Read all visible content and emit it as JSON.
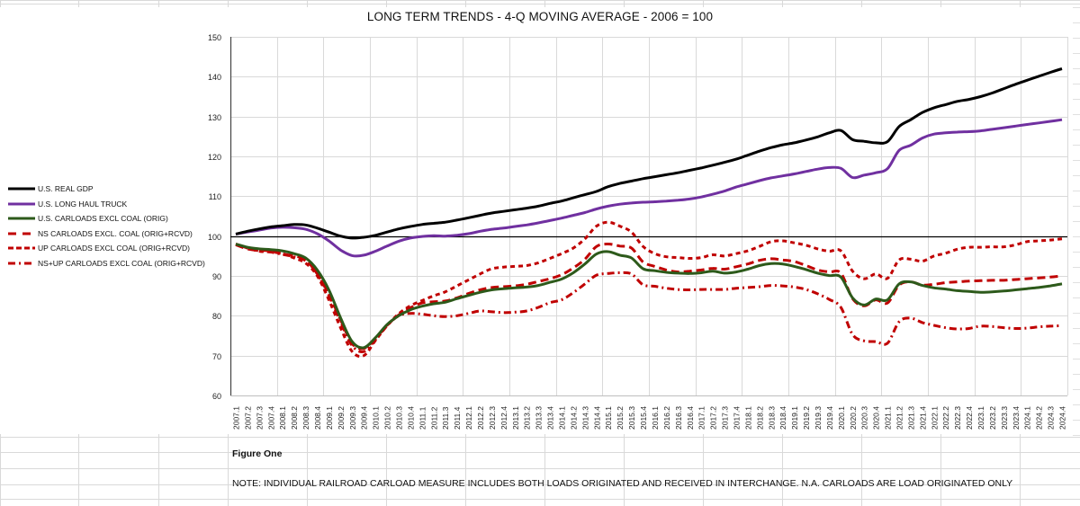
{
  "figure_label": "Figure One",
  "note": "NOTE: INDIVIDUAL RAILROAD CARLOAD MEASURE INCLUDES BOTH LOADS ORIGINATED AND RECEIVED IN INTERCHANGE. N.A. CARLOADS ARE LOAD ORIGINATED ONLY",
  "chart_data": {
    "type": "line",
    "title": "LONG TERM TRENDS - 4-Q MOVING AVERAGE - 2006 = 100",
    "xlabel": "",
    "ylabel": "",
    "ylim": [
      60,
      150
    ],
    "yticks": [
      60,
      70,
      80,
      90,
      100,
      110,
      120,
      130,
      140,
      150
    ],
    "reference_line": 100,
    "grid": true,
    "legend_position": "left",
    "x": [
      "2007.1",
      "2007.2",
      "2007.3",
      "2007.4",
      "2008.1",
      "2008.2",
      "2008.3",
      "2008.4",
      "2009.1",
      "2009.2",
      "2009.3",
      "2009.4",
      "2010.1",
      "2010.2",
      "2010.3",
      "2010.4",
      "2011.1",
      "2011.2",
      "2011.3",
      "2011.4",
      "2012.1",
      "2012.2",
      "2012.3",
      "2012.4",
      "2013.1",
      "2013.2",
      "2013.3",
      "2013.4",
      "2014.1",
      "2014.2",
      "2014.3",
      "2014.4",
      "2015.1",
      "2015.2",
      "2015.3",
      "2015.4",
      "2016.1",
      "2016.2",
      "2016.3",
      "2016.4",
      "2017.1",
      "2017.2",
      "2017.3",
      "2017.4",
      "2018.1",
      "2018.2",
      "2018.3",
      "2018.4",
      "2019.1",
      "2019.2",
      "2019.3",
      "2019.4",
      "2020.1",
      "2020.2",
      "2020.3",
      "2020.4",
      "2021.1",
      "2021.2",
      "2021.3",
      "2021.4",
      "2022.1",
      "2022.2",
      "2022.3",
      "2022.4",
      "2023.1",
      "2023.2",
      "2023.3",
      "2023.4",
      "2024.1",
      "2024.2",
      "2024.3",
      "2024.4"
    ],
    "series": [
      {
        "name": "U.S. REAL GDP",
        "color": "#000000",
        "style": "solid",
        "values": [
          100.5,
          101.2,
          101.8,
          102.3,
          102.6,
          102.9,
          102.8,
          102.0,
          101.0,
          100.0,
          99.5,
          99.7,
          100.2,
          101.0,
          101.8,
          102.4,
          102.9,
          103.2,
          103.5,
          104.0,
          104.6,
          105.2,
          105.8,
          106.2,
          106.6,
          107.0,
          107.5,
          108.2,
          108.8,
          109.6,
          110.4,
          111.2,
          112.4,
          113.2,
          113.8,
          114.4,
          114.9,
          115.4,
          115.9,
          116.5,
          117.1,
          117.8,
          118.5,
          119.3,
          120.3,
          121.3,
          122.2,
          122.9,
          123.4,
          124.1,
          124.9,
          125.9,
          126.5,
          124.2,
          123.8,
          123.4,
          123.7,
          127.5,
          129.2,
          131.0,
          132.2,
          133.0,
          133.8,
          134.3,
          135.0,
          135.9,
          137.0,
          138.1,
          139.1,
          140.1,
          141.1,
          142.0
        ]
      },
      {
        "name": "U.S. LONG HAUL TRUCK",
        "color": "#7030a0",
        "style": "solid",
        "values": [
          100.5,
          101.0,
          101.5,
          102.0,
          102.2,
          102.1,
          101.7,
          100.6,
          98.8,
          96.5,
          95.1,
          95.2,
          96.2,
          97.5,
          98.7,
          99.5,
          99.9,
          100.1,
          100.0,
          100.2,
          100.6,
          101.2,
          101.7,
          102.0,
          102.4,
          102.8,
          103.3,
          103.9,
          104.5,
          105.2,
          105.9,
          106.8,
          107.5,
          108.0,
          108.3,
          108.5,
          108.6,
          108.8,
          109.0,
          109.3,
          109.8,
          110.5,
          111.3,
          112.3,
          113.1,
          113.9,
          114.6,
          115.1,
          115.6,
          116.2,
          116.8,
          117.2,
          117.0,
          114.7,
          115.3,
          115.9,
          116.9,
          121.5,
          122.8,
          124.6,
          125.6,
          125.9,
          126.1,
          126.2,
          126.4,
          126.8,
          127.2,
          127.6,
          128.0,
          128.4,
          128.8,
          129.2
        ]
      },
      {
        "name": "U.S. CARLOADS EXCL COAL (ORIG)",
        "color": "#2d5a1b",
        "style": "solid",
        "values": [
          98.0,
          97.2,
          96.8,
          96.6,
          96.3,
          95.6,
          94.5,
          91.5,
          86.5,
          79.5,
          73.5,
          72.0,
          74.5,
          77.8,
          80.0,
          81.5,
          82.4,
          83.0,
          83.4,
          84.3,
          85.1,
          85.9,
          86.5,
          86.8,
          87.0,
          87.2,
          87.6,
          88.4,
          89.2,
          90.8,
          93.0,
          95.5,
          96.1,
          95.2,
          94.5,
          91.8,
          91.3,
          90.9,
          90.7,
          90.6,
          90.8,
          91.2,
          90.7,
          91.0,
          91.7,
          92.6,
          93.1,
          93.0,
          92.4,
          91.6,
          90.7,
          90.1,
          89.7,
          84.5,
          82.7,
          84.2,
          84.0,
          88.0,
          88.5,
          87.6,
          87.0,
          86.7,
          86.3,
          86.1,
          85.9,
          86.0,
          86.2,
          86.5,
          86.8,
          87.1,
          87.5,
          88.0
        ]
      },
      {
        "name": "NS CARLOADS EXCL. COAL (ORIG+RCVD)",
        "color": "#c00000",
        "style": "long-dash",
        "values": [
          97.8,
          96.8,
          96.4,
          96.3,
          95.5,
          95.0,
          94.0,
          90.5,
          85.5,
          79.0,
          73.0,
          71.8,
          74.3,
          77.6,
          80.2,
          82.0,
          83.2,
          83.5,
          83.7,
          84.5,
          85.6,
          86.5,
          87.1,
          87.3,
          87.5,
          87.9,
          88.6,
          89.3,
          90.3,
          92.0,
          94.2,
          97.4,
          98.0,
          97.5,
          97.0,
          93.5,
          92.4,
          91.5,
          91.0,
          91.2,
          91.5,
          91.9,
          91.7,
          92.3,
          93.0,
          93.9,
          94.3,
          94.0,
          93.6,
          92.6,
          91.5,
          91.0,
          90.7,
          84.3,
          82.5,
          84.0,
          83.2,
          87.7,
          88.5,
          87.7,
          87.9,
          88.3,
          88.5,
          88.7,
          88.8,
          88.9,
          88.9,
          89.1,
          89.3,
          89.5,
          89.7,
          90.0
        ]
      },
      {
        "name": "UP CARLOADS EXCL COAL (ORIG+RCVD)",
        "color": "#c00000",
        "style": "short-dash",
        "values": [
          98.0,
          97.0,
          96.2,
          96.0,
          95.6,
          94.5,
          93.2,
          90.0,
          84.0,
          77.0,
          71.0,
          70.0,
          73.8,
          77.5,
          80.5,
          82.5,
          83.8,
          85.0,
          86.0,
          87.5,
          89.0,
          90.5,
          91.8,
          92.2,
          92.4,
          92.6,
          93.3,
          94.4,
          95.6,
          97.0,
          99.3,
          102.5,
          103.5,
          102.5,
          101.0,
          97.4,
          95.6,
          94.8,
          94.6,
          94.4,
          94.6,
          95.3,
          95.0,
          95.6,
          96.3,
          97.4,
          98.6,
          98.8,
          98.3,
          97.7,
          96.8,
          96.2,
          96.3,
          91.2,
          89.3,
          90.5,
          89.4,
          94.0,
          94.2,
          93.7,
          95.0,
          95.7,
          96.7,
          97.2,
          97.2,
          97.3,
          97.3,
          97.8,
          98.6,
          98.8,
          99.0,
          99.3
        ]
      },
      {
        "name": "NS+UP CARLOADS EXCL COAL (ORIG+RCVD)",
        "color": "#c00000",
        "style": "dash-dot",
        "values": [
          98.0,
          97.0,
          96.3,
          96.0,
          95.4,
          94.8,
          93.8,
          90.5,
          85.0,
          78.5,
          72.5,
          71.0,
          74.0,
          77.5,
          80.0,
          80.6,
          80.4,
          80.0,
          79.8,
          80.0,
          80.6,
          81.2,
          81.0,
          80.8,
          80.9,
          81.2,
          82.1,
          83.3,
          84.0,
          85.8,
          88.0,
          90.2,
          90.6,
          90.8,
          90.5,
          87.8,
          87.4,
          86.9,
          86.6,
          86.5,
          86.6,
          86.6,
          86.6,
          86.9,
          87.1,
          87.3,
          87.6,
          87.5,
          87.2,
          86.6,
          85.5,
          84.1,
          82.1,
          75.3,
          73.7,
          73.5,
          73.1,
          78.5,
          79.4,
          78.3,
          77.6,
          77.0,
          76.7,
          76.8,
          77.4,
          77.3,
          77.0,
          76.8,
          76.9,
          77.2,
          77.4,
          77.5
        ]
      }
    ]
  }
}
